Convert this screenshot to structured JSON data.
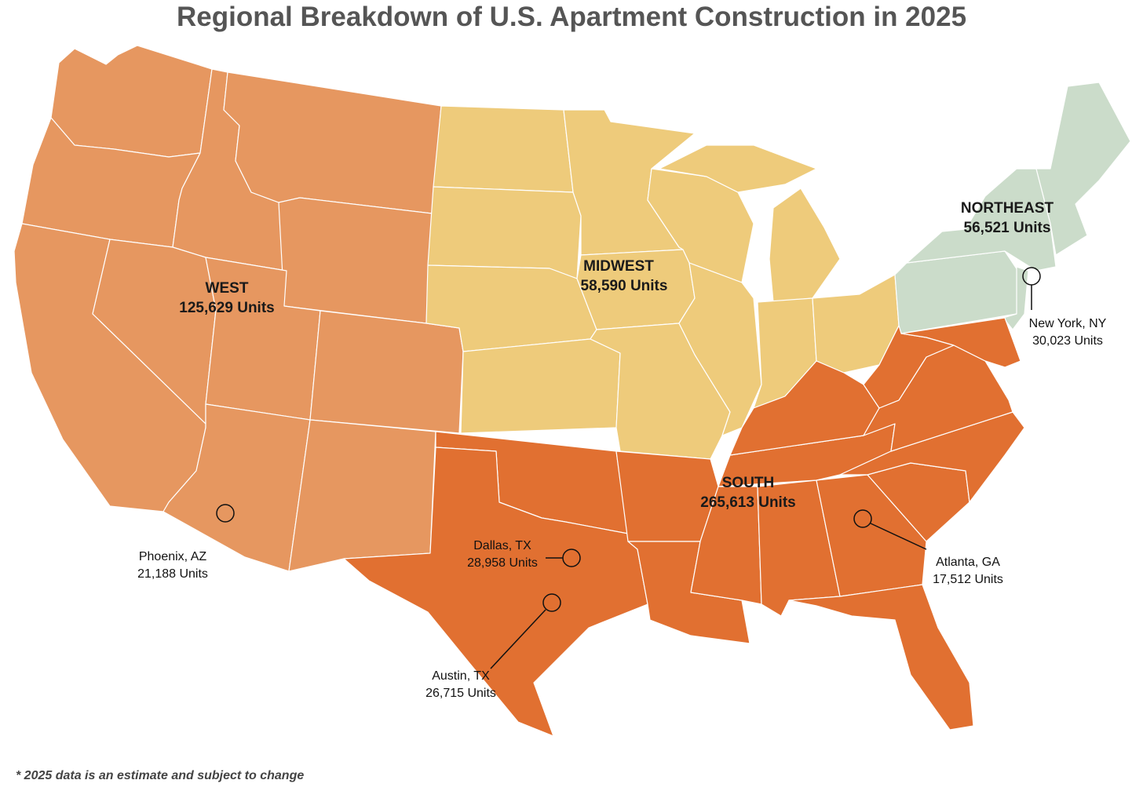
{
  "title": "Regional Breakdown of U.S. Apartment Construction in 2025",
  "footnote": "* 2025 data is an estimate and subject to change",
  "colors": {
    "west": "#E69760",
    "midwest": "#EECB7B",
    "northeast": "#CBDCCA",
    "south": "#E17031",
    "background": "#ffffff"
  },
  "regions": {
    "west": {
      "name": "WEST",
      "units": "125,629 Units"
    },
    "midwest": {
      "name": "MIDWEST",
      "units": "58,590 Units"
    },
    "northeast": {
      "name": "NORTHEAST",
      "units": "56,521 Units"
    },
    "south": {
      "name": "SOUTH",
      "units": "265,613 Units"
    }
  },
  "cities": {
    "new_york": {
      "name": "New York, NY",
      "units": "30,023 Units"
    },
    "phoenix": {
      "name": "Phoenix, AZ",
      "units": "21,188 Units"
    },
    "dallas": {
      "name": "Dallas, TX",
      "units": "28,958 Units"
    },
    "austin": {
      "name": "Austin, TX",
      "units": "26,715 Units"
    },
    "atlanta": {
      "name": "Atlanta, GA",
      "units": "17,512 Units"
    }
  }
}
